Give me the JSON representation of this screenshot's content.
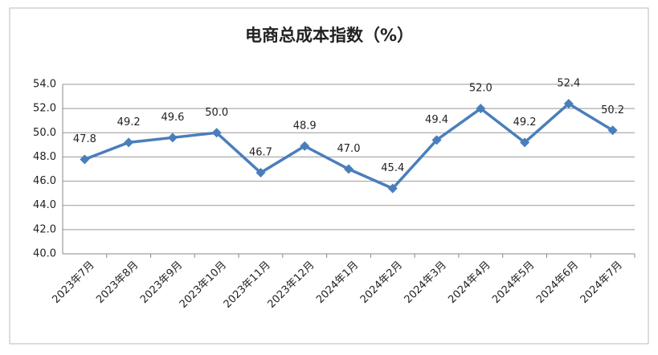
{
  "chart_data": {
    "type": "line",
    "title": "电商总成本指数（%）",
    "categories": [
      "2023年7月",
      "2023年8月",
      "2023年9月",
      "2023年10月",
      "2023年11月",
      "2023年12月",
      "2024年1月",
      "2024年2月",
      "2024年3月",
      "2024年4月",
      "2024年5月",
      "2024年6月",
      "2024年7月"
    ],
    "series": [
      {
        "name": "电商总成本指数",
        "color": "#4a7ebb",
        "values": [
          47.8,
          49.2,
          49.6,
          50.0,
          46.7,
          48.9,
          47.0,
          45.4,
          49.4,
          52.0,
          49.2,
          52.4,
          50.2
        ],
        "value_labels": [
          "47.8",
          "49.2",
          "49.6",
          "50.0",
          "46.7",
          "48.9",
          "47.0",
          "45.4",
          "49.4",
          "52.0",
          "49.2",
          "52.4",
          "50.2"
        ]
      }
    ],
    "ylim": [
      40,
      54
    ],
    "yticks": [
      {
        "value": 40,
        "label": "40.0"
      },
      {
        "value": 42,
        "label": "42.0"
      },
      {
        "value": 44,
        "label": "44.0"
      },
      {
        "value": 46,
        "label": "46.0"
      },
      {
        "value": 48,
        "label": "48.0"
      },
      {
        "value": 50,
        "label": "50.0"
      },
      {
        "value": 52,
        "label": "52.0"
      },
      {
        "value": 54,
        "label": "54.0"
      }
    ],
    "grid": true
  }
}
